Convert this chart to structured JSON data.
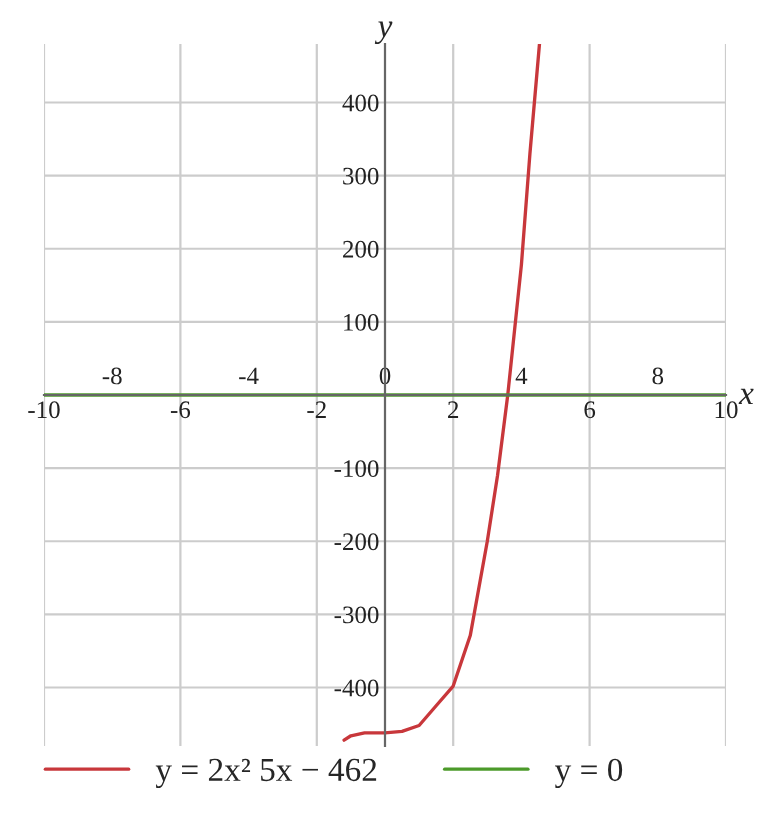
{
  "chart_data": {
    "type": "line",
    "xlabel": "x",
    "ylabel": "y",
    "xlim": [
      -10,
      10
    ],
    "ylim": [
      -480,
      480
    ],
    "xticks": [
      -10,
      -6,
      -2,
      2,
      6,
      10
    ],
    "x2lim": [
      -10,
      10
    ],
    "x2ticks": [
      -8,
      -4,
      0,
      4,
      8
    ],
    "yticks": [
      -400,
      -300,
      -200,
      -100,
      100,
      200,
      300,
      400
    ],
    "grid": true,
    "legend": "bottom",
    "line_style": "solid",
    "marker": "none",
    "series": [
      {
        "name": "y = 2x² 5x − 462",
        "color": "#c8373b",
        "x": [
          -1.2,
          -1,
          -0.6,
          0,
          0.5,
          1,
          1.5,
          2,
          2.5,
          3,
          3.3,
          3.6,
          4,
          4.25,
          4.53
        ],
        "values": [
          -472,
          -466,
          -462,
          -462,
          -460,
          -452,
          -425,
          -398,
          -329,
          -200,
          -110,
          0,
          178,
          330,
          480
        ]
      },
      {
        "name": "y = 0",
        "color": "#4c9a2a",
        "x": [
          -10,
          10
        ],
        "values": [
          0,
          0
        ]
      }
    ]
  }
}
